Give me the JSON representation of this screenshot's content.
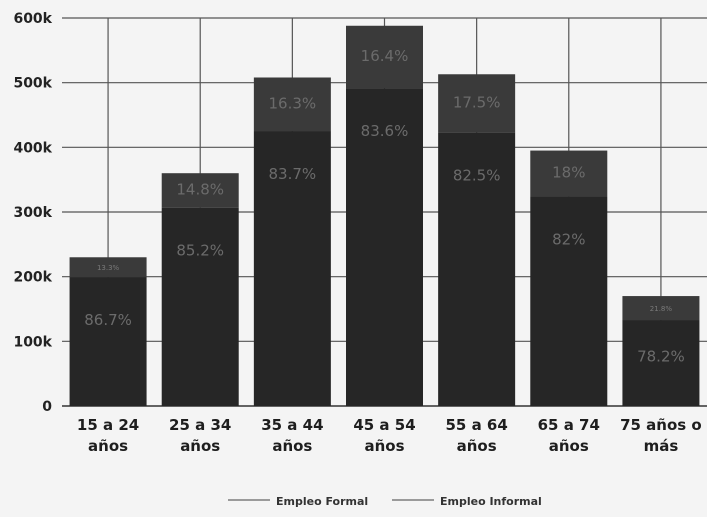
{
  "chart_data": {
    "type": "bar",
    "stacked": true,
    "categories": [
      [
        "15 a 24",
        "años"
      ],
      [
        "25 a 34",
        "años"
      ],
      [
        "35 a 44",
        "años"
      ],
      [
        "45 a 54",
        "años"
      ],
      [
        "55 a 64",
        "años"
      ],
      [
        "65 a 74",
        "años"
      ],
      [
        "75 años o",
        "más"
      ]
    ],
    "totals": [
      230000,
      360000,
      508000,
      588000,
      513000,
      395000,
      170000
    ],
    "series": [
      {
        "name": "Empleo Formal",
        "color": "#3a3a3a",
        "labels": [
          "13.3%",
          "14.8%",
          "16.3%",
          "16.4%",
          "17.5%",
          "18%",
          "21.8%"
        ]
      },
      {
        "name": "Empleo Informal",
        "color": "#262626",
        "labels": [
          "86.7%",
          "85.2%",
          "83.7%",
          "83.6%",
          "82.5%",
          "82%",
          "78.2%"
        ]
      }
    ],
    "y_ticks": [
      "0",
      "100k",
      "200k",
      "300k",
      "400k",
      "500k",
      "600k"
    ],
    "ylim": [
      0,
      600000
    ],
    "grid": true,
    "legend_position": "bottom",
    "title": "",
    "xlabel": "",
    "ylabel": ""
  }
}
